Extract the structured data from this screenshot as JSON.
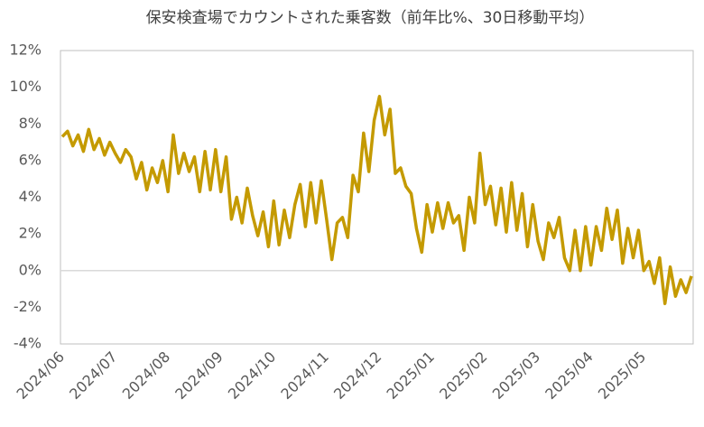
{
  "chart_data": {
    "type": "line",
    "title": "保安検査場でカウントされた乗客数（前年比%、30日移動平均）",
    "categories": [
      "2024/06",
      null,
      null,
      null,
      null,
      null,
      null,
      null,
      null,
      null,
      "2024/07",
      null,
      null,
      null,
      null,
      null,
      null,
      null,
      null,
      null,
      "2024/08",
      null,
      null,
      null,
      null,
      null,
      null,
      null,
      null,
      null,
      "2024/09",
      null,
      null,
      null,
      null,
      null,
      null,
      null,
      null,
      null,
      "2024/10",
      null,
      null,
      null,
      null,
      null,
      null,
      null,
      null,
      null,
      "2024/11",
      null,
      null,
      null,
      null,
      null,
      null,
      null,
      null,
      null,
      "2024/12",
      null,
      null,
      null,
      null,
      null,
      null,
      null,
      null,
      null,
      "2025/01",
      null,
      null,
      null,
      null,
      null,
      null,
      null,
      null,
      null,
      "2025/02",
      null,
      null,
      null,
      null,
      null,
      null,
      null,
      null,
      null,
      "2025/03",
      null,
      null,
      null,
      null,
      null,
      null,
      null,
      null,
      null,
      "2025/04",
      null,
      null,
      null,
      null,
      null,
      null,
      null,
      null,
      null,
      "2025/05",
      null,
      null,
      null,
      null,
      null,
      null,
      null,
      null,
      null
    ],
    "values": [
      7.3,
      7.6,
      6.8,
      7.4,
      6.5,
      7.7,
      6.6,
      7.2,
      6.3,
      7.0,
      6.4,
      5.9,
      6.6,
      6.2,
      5.0,
      5.9,
      4.4,
      5.6,
      4.8,
      6.0,
      4.3,
      7.4,
      5.3,
      6.4,
      5.4,
      6.2,
      4.3,
      6.5,
      4.4,
      6.6,
      4.3,
      6.2,
      2.8,
      4.0,
      2.6,
      4.5,
      3.0,
      1.9,
      3.2,
      1.3,
      3.8,
      1.4,
      3.3,
      1.8,
      3.6,
      4.7,
      2.4,
      4.8,
      2.6,
      4.9,
      2.8,
      0.6,
      2.6,
      2.9,
      1.8,
      5.2,
      4.3,
      7.5,
      5.4,
      8.2,
      9.5,
      7.4,
      8.8,
      5.3,
      5.6,
      4.6,
      4.2,
      2.3,
      1.0,
      3.6,
      2.1,
      3.7,
      2.3,
      3.7,
      2.6,
      3.0,
      1.1,
      4.0,
      2.6,
      6.4,
      3.6,
      4.6,
      2.5,
      4.5,
      2.1,
      4.8,
      2.2,
      4.2,
      1.3,
      3.6,
      1.6,
      0.6,
      2.6,
      1.8,
      2.9,
      0.7,
      0.0,
      2.2,
      0.0,
      2.4,
      0.3,
      2.4,
      1.1,
      3.4,
      1.7,
      3.3,
      0.4,
      2.3,
      0.7,
      2.2,
      0.0,
      0.5,
      -0.7,
      0.7,
      -1.8,
      0.2,
      -1.4,
      -0.5,
      -1.2,
      -0.3
    ],
    "color": "#c49a00",
    "ylim": [
      -4,
      12
    ],
    "yticks": [
      {
        "value": -4,
        "label": "-4%"
      },
      {
        "value": -2,
        "label": "-2%"
      },
      {
        "value": 0,
        "label": "0%"
      },
      {
        "value": 2,
        "label": "2%"
      },
      {
        "value": 4,
        "label": "4%"
      },
      {
        "value": 6,
        "label": "6%"
      },
      {
        "value": 8,
        "label": "8%"
      },
      {
        "value": 10,
        "label": "10%"
      },
      {
        "value": 12,
        "label": "12%"
      }
    ]
  }
}
